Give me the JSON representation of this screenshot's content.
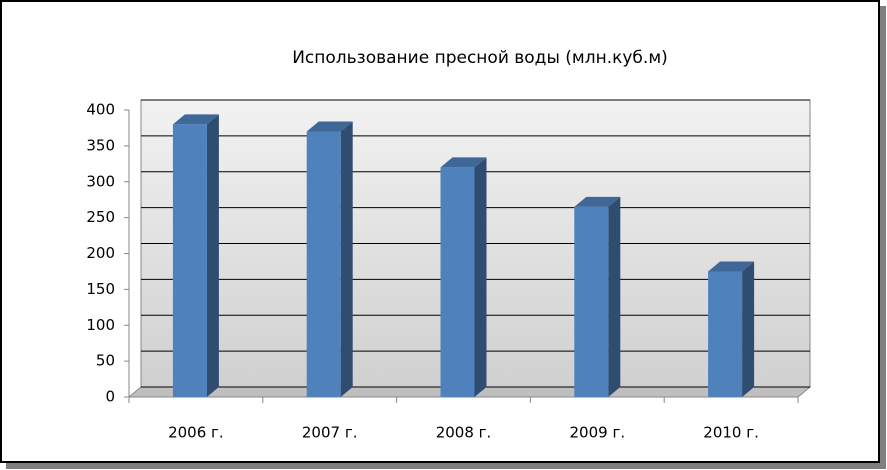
{
  "chart_data": {
    "type": "bar",
    "title": "Использование пресной воды (млн.куб.м)",
    "categories": [
      "2006 г.",
      "2007 г.",
      "2008 г.",
      "2009 г.",
      "2010 г."
    ],
    "values": [
      380,
      370,
      320,
      265,
      175
    ],
    "color": "#4f81bd",
    "ylim": [
      0,
      400
    ],
    "yticks": [
      0,
      50,
      100,
      150,
      200,
      250,
      300,
      350,
      400
    ],
    "grid": true
  }
}
